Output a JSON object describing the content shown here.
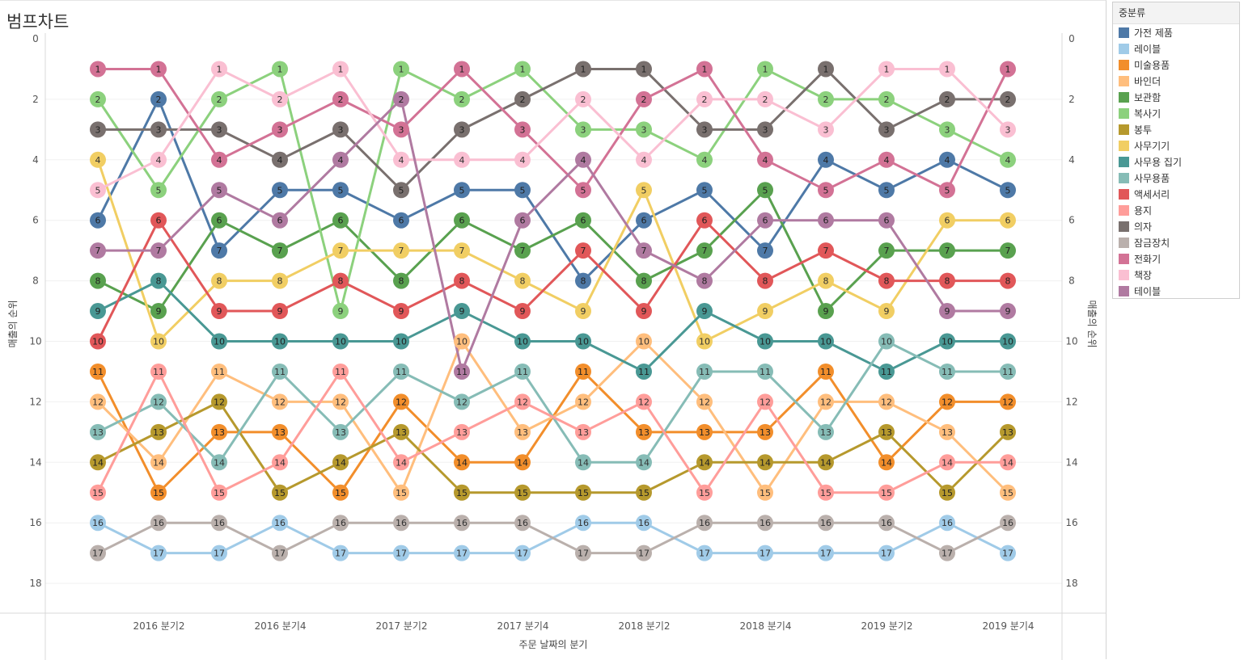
{
  "sheet": {
    "title": "범프차트"
  },
  "legend": {
    "title": "중분류",
    "items": [
      {
        "label": "가전 제품",
        "color": "#4e79a7"
      },
      {
        "label": "레이블",
        "color": "#a0cbe8"
      },
      {
        "label": "미술용품",
        "color": "#f28e2b"
      },
      {
        "label": "바인더",
        "color": "#ffbe7d"
      },
      {
        "label": "보관함",
        "color": "#59a14f"
      },
      {
        "label": "복사기",
        "color": "#8cd17d"
      },
      {
        "label": "봉투",
        "color": "#b6992d"
      },
      {
        "label": "사무기기",
        "color": "#f1ce63"
      },
      {
        "label": "사무용 집기",
        "color": "#499894"
      },
      {
        "label": "사무용품",
        "color": "#86bcb6"
      },
      {
        "label": "액세서리",
        "color": "#e15759"
      },
      {
        "label": "용지",
        "color": "#ff9d9a"
      },
      {
        "label": "의자",
        "color": "#79706e"
      },
      {
        "label": "잠금장치",
        "color": "#bab0ac"
      },
      {
        "label": "전화기",
        "color": "#d37295"
      },
      {
        "label": "책장",
        "color": "#fabfd2"
      },
      {
        "label": "테이블",
        "color": "#b07aa1"
      }
    ]
  },
  "chart_data": {
    "type": "line",
    "subtype": "bump",
    "xlabel": "주문 날짜의 분기",
    "ylabel": "매출의 순위",
    "y_reversed": true,
    "ylim": [
      0,
      19
    ],
    "y_ticks": [
      "0",
      "2",
      "4",
      "6",
      "8",
      "10",
      "12",
      "14",
      "16",
      "18"
    ],
    "x_tick_labels": [
      "2016 분기2",
      "2016 분기4",
      "2017 분기2",
      "2017 분기4",
      "2018 분기2",
      "2018 분기4",
      "2019 분기2",
      "2019 분기4"
    ],
    "x_tick_at_period": [
      2,
      4,
      6,
      8,
      10,
      12,
      14,
      16
    ],
    "periods": 16,
    "grid": true,
    "legend_position": "right",
    "series": [
      {
        "name": "가전 제품",
        "values": [
          6,
          2,
          7,
          5,
          5,
          6,
          5,
          5,
          8,
          6,
          5,
          7,
          4,
          5,
          4,
          5
        ]
      },
      {
        "name": "레이블",
        "values": [
          16,
          17,
          17,
          16,
          17,
          17,
          17,
          17,
          16,
          16,
          17,
          17,
          17,
          17,
          16,
          17
        ]
      },
      {
        "name": "미술용품",
        "values": [
          11,
          15,
          13,
          13,
          15,
          12,
          14,
          14,
          11,
          13,
          13,
          13,
          11,
          14,
          12,
          12
        ]
      },
      {
        "name": "바인더",
        "values": [
          12,
          14,
          11,
          12,
          12,
          15,
          10,
          13,
          12,
          10,
          12,
          15,
          12,
          12,
          13,
          15
        ]
      },
      {
        "name": "보관함",
        "values": [
          8,
          9,
          6,
          7,
          6,
          8,
          6,
          7,
          6,
          8,
          7,
          5,
          9,
          7,
          7,
          7
        ]
      },
      {
        "name": "복사기",
        "values": [
          2,
          5,
          2,
          1,
          9,
          1,
          2,
          1,
          3,
          3,
          4,
          1,
          2,
          2,
          3,
          4
        ]
      },
      {
        "name": "봉투",
        "values": [
          14,
          13,
          12,
          15,
          14,
          13,
          15,
          15,
          15,
          15,
          14,
          14,
          14,
          13,
          15,
          13
        ]
      },
      {
        "name": "사무기기",
        "values": [
          4,
          10,
          8,
          8,
          7,
          7,
          7,
          8,
          9,
          5,
          10,
          9,
          8,
          9,
          6,
          6
        ]
      },
      {
        "name": "사무용 집기",
        "values": [
          9,
          8,
          10,
          10,
          10,
          10,
          9,
          10,
          10,
          11,
          9,
          10,
          10,
          11,
          10,
          10
        ]
      },
      {
        "name": "사무용품",
        "values": [
          13,
          12,
          14,
          11,
          13,
          11,
          12,
          11,
          14,
          14,
          11,
          11,
          13,
          10,
          11,
          11
        ]
      },
      {
        "name": "액세서리",
        "values": [
          10,
          6,
          9,
          9,
          8,
          9,
          8,
          9,
          7,
          9,
          6,
          8,
          7,
          8,
          8,
          8
        ]
      },
      {
        "name": "용지",
        "values": [
          15,
          11,
          15,
          14,
          11,
          14,
          13,
          12,
          13,
          12,
          15,
          12,
          15,
          15,
          14,
          14
        ]
      },
      {
        "name": "의자",
        "values": [
          3,
          3,
          3,
          4,
          3,
          5,
          3,
          2,
          1,
          1,
          3,
          3,
          1,
          3,
          2,
          2
        ]
      },
      {
        "name": "잠금장치",
        "values": [
          17,
          16,
          16,
          17,
          16,
          16,
          16,
          16,
          17,
          17,
          16,
          16,
          16,
          16,
          17,
          16
        ]
      },
      {
        "name": "전화기",
        "values": [
          1,
          1,
          4,
          3,
          2,
          3,
          1,
          3,
          5,
          2,
          1,
          4,
          5,
          4,
          5,
          1
        ]
      },
      {
        "name": "책장",
        "values": [
          5,
          4,
          1,
          2,
          1,
          4,
          4,
          4,
          2,
          4,
          2,
          2,
          3,
          1,
          1,
          3
        ]
      },
      {
        "name": "테이블",
        "values": [
          7,
          7,
          5,
          6,
          4,
          2,
          11,
          6,
          4,
          7,
          8,
          6,
          6,
          6,
          9,
          9
        ]
      }
    ]
  }
}
